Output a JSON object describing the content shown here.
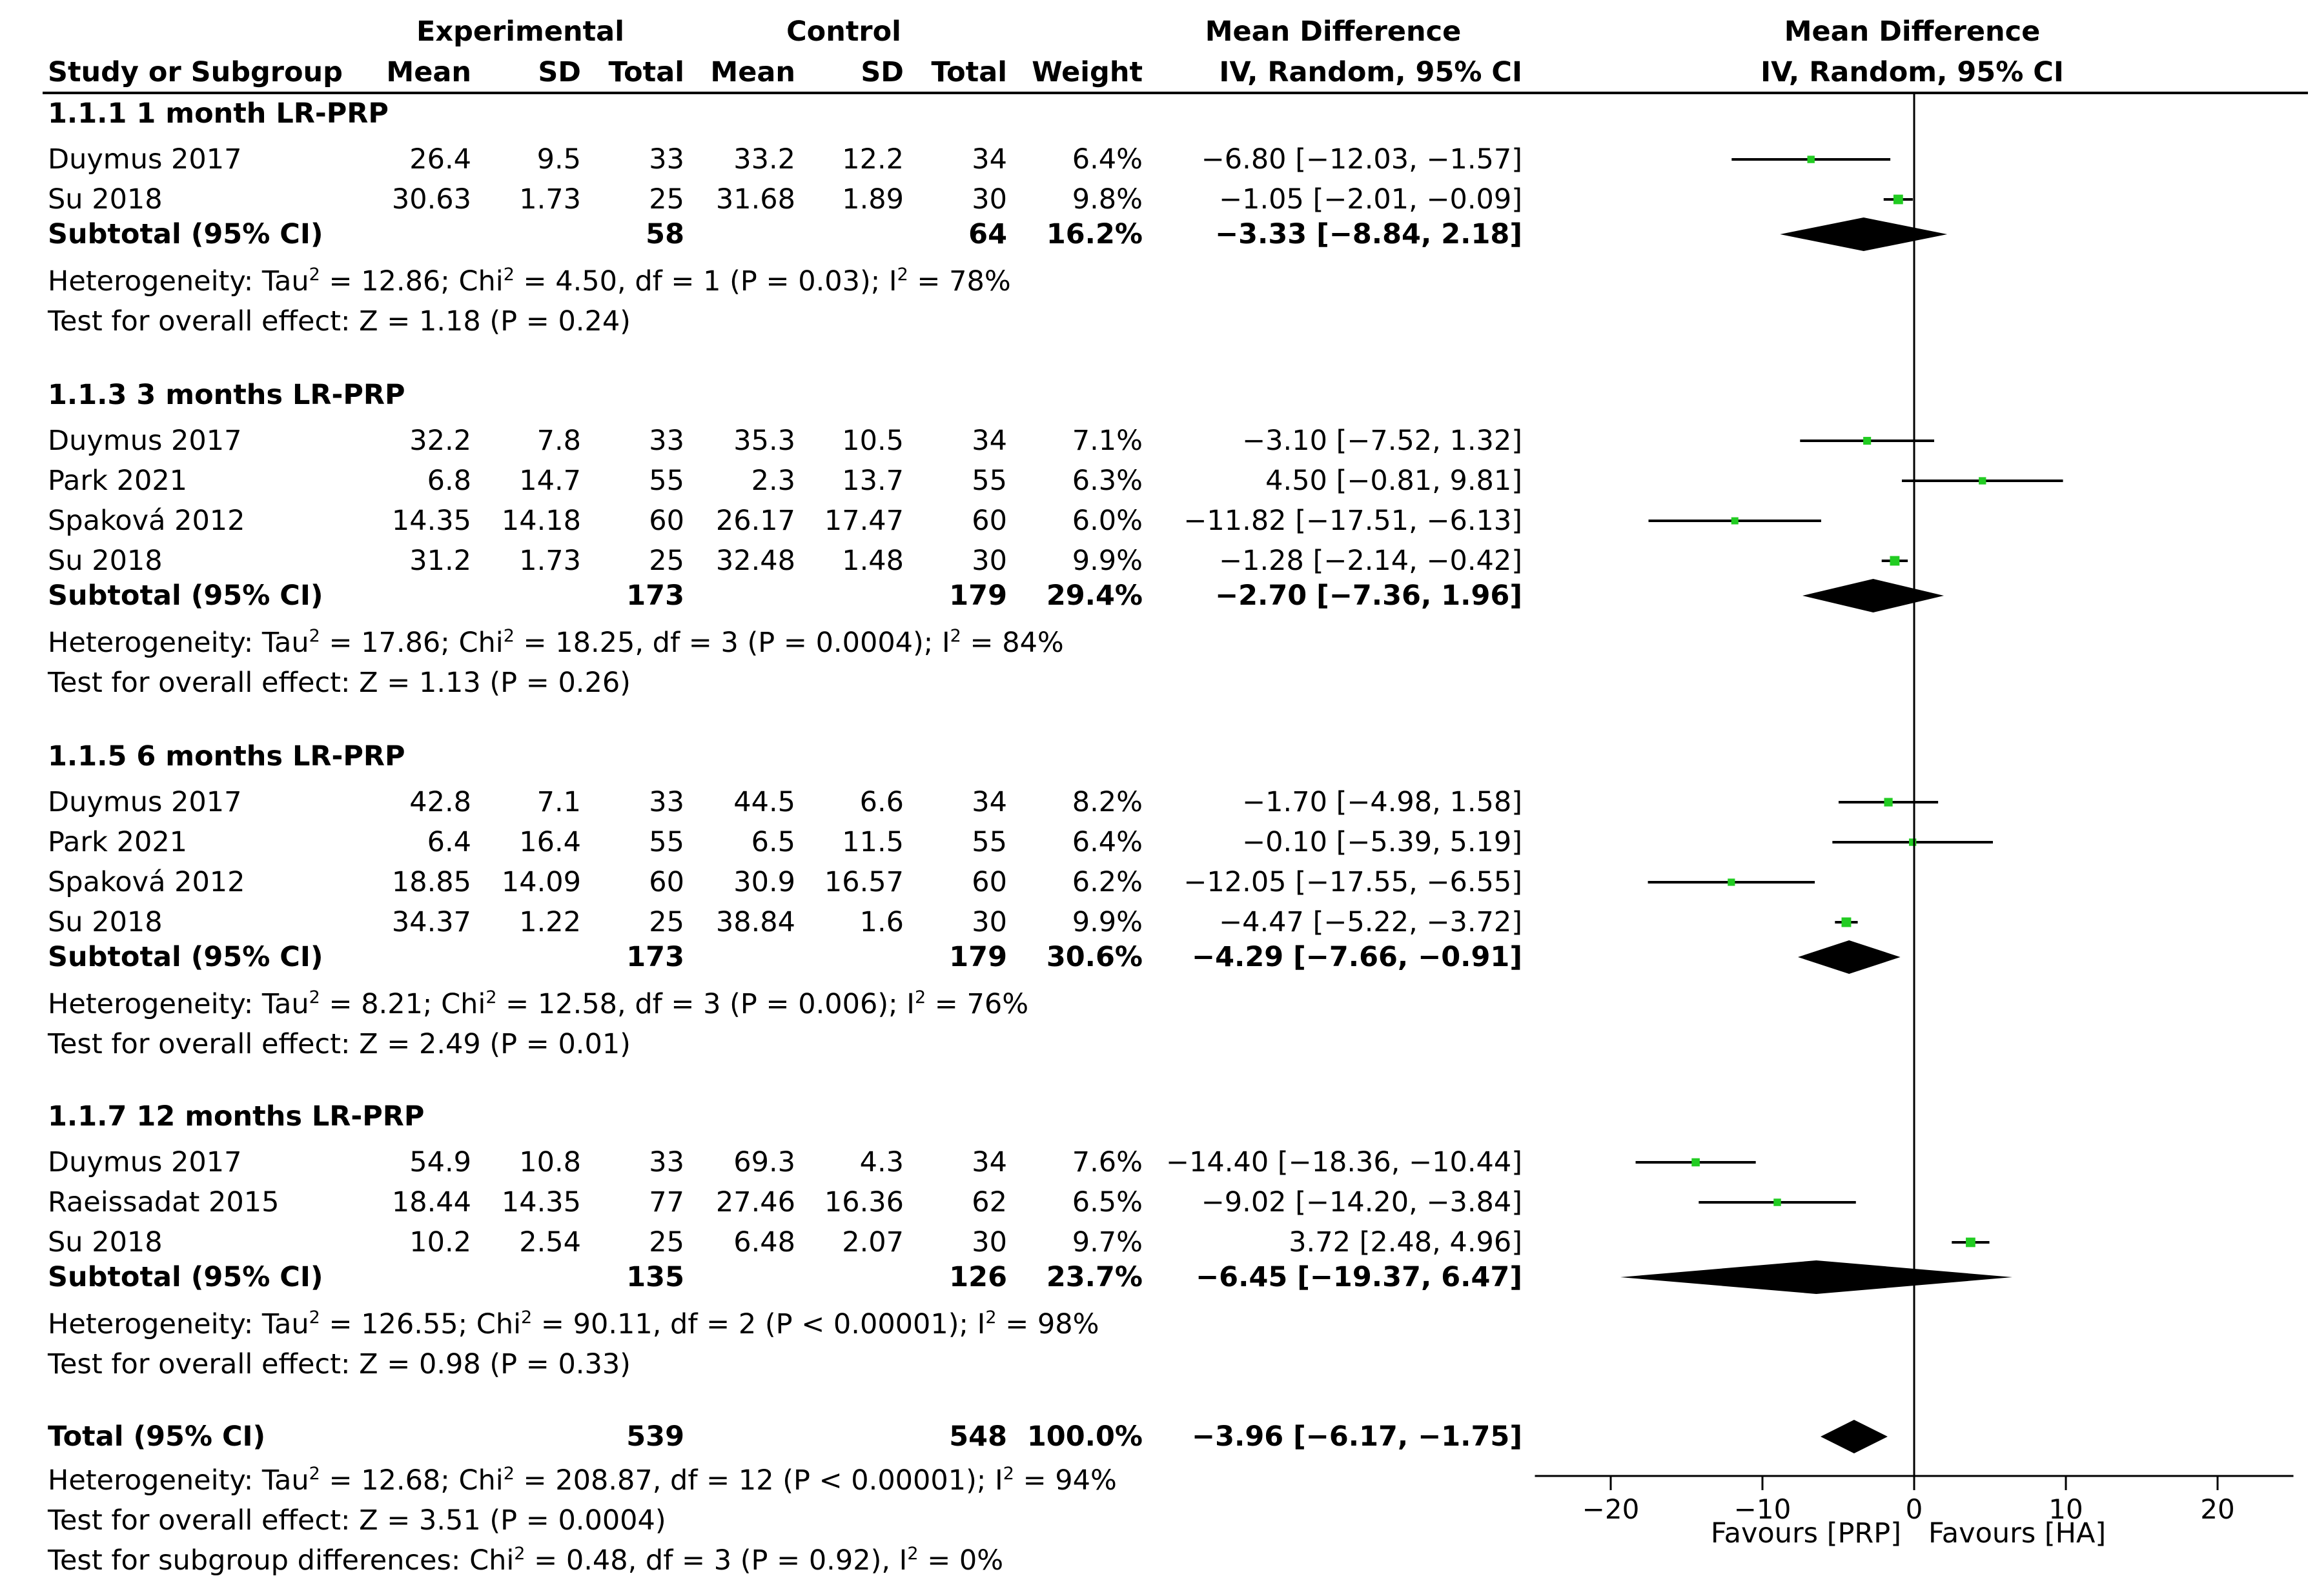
{
  "header": {
    "experimental": "Experimental",
    "control": "Control",
    "md_title": "Mean Difference",
    "study_col": "Study or Subgroup",
    "mean": "Mean",
    "sd": "SD",
    "total": "Total",
    "weight": "Weight",
    "md_method": "IV, Random, 95% CI",
    "plot_title": "Mean Difference",
    "plot_method": "IV, Random, 95% CI"
  },
  "subgroups": [
    {
      "title": "1.1.1 1 month LR-PRP",
      "studies": [
        {
          "name": "Duymus 2017",
          "e_mean": "26.4",
          "e_sd": "9.5",
          "e_total": "33",
          "c_mean": "33.2",
          "c_sd": "12.2",
          "c_total": "34",
          "weight": "6.4%",
          "ci_text": "-6.80 [-12.03, -1.57]",
          "md": -6.8,
          "lo": -12.03,
          "hi": -1.57
        },
        {
          "name": "Su 2018",
          "e_mean": "30.63",
          "e_sd": "1.73",
          "e_total": "25",
          "c_mean": "31.68",
          "c_sd": "1.89",
          "c_total": "30",
          "weight": "9.8%",
          "ci_text": "-1.05 [-2.01, -0.09]",
          "md": -1.05,
          "lo": -2.01,
          "hi": -0.09
        }
      ],
      "subtotal": {
        "label": "Subtotal (95% CI)",
        "e_total": "58",
        "c_total": "64",
        "weight": "16.2%",
        "ci_text": "-3.33 [-8.84, 2.18]",
        "md": -3.33,
        "lo": -8.84,
        "hi": 2.18
      },
      "heterogeneity": {
        "tau2": "12.86",
        "chi2": "4.50",
        "df": "1",
        "p": "P = 0.03",
        "i2": "78%"
      },
      "overall": "Test for overall effect: Z = 1.18 (P = 0.24)"
    },
    {
      "title": "1.1.3 3 months LR-PRP",
      "studies": [
        {
          "name": "Duymus 2017",
          "e_mean": "32.2",
          "e_sd": "7.8",
          "e_total": "33",
          "c_mean": "35.3",
          "c_sd": "10.5",
          "c_total": "34",
          "weight": "7.1%",
          "ci_text": "-3.10 [-7.52, 1.32]",
          "md": -3.1,
          "lo": -7.52,
          "hi": 1.32
        },
        {
          "name": "Park 2021",
          "e_mean": "6.8",
          "e_sd": "14.7",
          "e_total": "55",
          "c_mean": "2.3",
          "c_sd": "13.7",
          "c_total": "55",
          "weight": "6.3%",
          "ci_text": "4.50 [-0.81, 9.81]",
          "md": 4.5,
          "lo": -0.81,
          "hi": 9.81
        },
        {
          "name": "Spaková 2012",
          "e_mean": "14.35",
          "e_sd": "14.18",
          "e_total": "60",
          "c_mean": "26.17",
          "c_sd": "17.47",
          "c_total": "60",
          "weight": "6.0%",
          "ci_text": "-11.82 [-17.51, -6.13]",
          "md": -11.82,
          "lo": -17.51,
          "hi": -6.13
        },
        {
          "name": "Su 2018",
          "e_mean": "31.2",
          "e_sd": "1.73",
          "e_total": "25",
          "c_mean": "32.48",
          "c_sd": "1.48",
          "c_total": "30",
          "weight": "9.9%",
          "ci_text": "-1.28 [-2.14, -0.42]",
          "md": -1.28,
          "lo": -2.14,
          "hi": -0.42
        }
      ],
      "subtotal": {
        "label": "Subtotal (95% CI)",
        "e_total": "173",
        "c_total": "179",
        "weight": "29.4%",
        "ci_text": "-2.70 [-7.36, 1.96]",
        "md": -2.7,
        "lo": -7.36,
        "hi": 1.96
      },
      "heterogeneity": {
        "tau2": "17.86",
        "chi2": "18.25",
        "df": "3",
        "p": "P = 0.0004",
        "i2": "84%"
      },
      "overall": "Test for overall effect: Z = 1.13 (P = 0.26)"
    },
    {
      "title": "1.1.5 6 months LR-PRP",
      "studies": [
        {
          "name": "Duymus 2017",
          "e_mean": "42.8",
          "e_sd": "7.1",
          "e_total": "33",
          "c_mean": "44.5",
          "c_sd": "6.6",
          "c_total": "34",
          "weight": "8.2%",
          "ci_text": "-1.70 [-4.98, 1.58]",
          "md": -1.7,
          "lo": -4.98,
          "hi": 1.58
        },
        {
          "name": "Park 2021",
          "e_mean": "6.4",
          "e_sd": "16.4",
          "e_total": "55",
          "c_mean": "6.5",
          "c_sd": "11.5",
          "c_total": "55",
          "weight": "6.4%",
          "ci_text": "-0.10 [-5.39, 5.19]",
          "md": -0.1,
          "lo": -5.39,
          "hi": 5.19
        },
        {
          "name": "Spaková 2012",
          "e_mean": "18.85",
          "e_sd": "14.09",
          "e_total": "60",
          "c_mean": "30.9",
          "c_sd": "16.57",
          "c_total": "60",
          "weight": "6.2%",
          "ci_text": "-12.05 [-17.55, -6.55]",
          "md": -12.05,
          "lo": -17.55,
          "hi": -6.55
        },
        {
          "name": "Su 2018",
          "e_mean": "34.37",
          "e_sd": "1.22",
          "e_total": "25",
          "c_mean": "38.84",
          "c_sd": "1.6",
          "c_total": "30",
          "weight": "9.9%",
          "ci_text": "-4.47 [-5.22, -3.72]",
          "md": -4.47,
          "lo": -5.22,
          "hi": -3.72
        }
      ],
      "subtotal": {
        "label": "Subtotal (95% CI)",
        "e_total": "173",
        "c_total": "179",
        "weight": "30.6%",
        "ci_text": "-4.29 [-7.66, -0.91]",
        "md": -4.29,
        "lo": -7.66,
        "hi": -0.91
      },
      "heterogeneity": {
        "tau2": "8.21",
        "chi2": "12.58",
        "df": "3",
        "p": "P = 0.006",
        "i2": "76%"
      },
      "overall": "Test for overall effect: Z = 2.49 (P = 0.01)"
    },
    {
      "title": "1.1.7 12 months LR-PRP",
      "studies": [
        {
          "name": "Duymus 2017",
          "e_mean": "54.9",
          "e_sd": "10.8",
          "e_total": "33",
          "c_mean": "69.3",
          "c_sd": "4.3",
          "c_total": "34",
          "weight": "7.6%",
          "ci_text": "-14.40 [-18.36, -10.44]",
          "md": -14.4,
          "lo": -18.36,
          "hi": -10.44
        },
        {
          "name": "Raeissadat 2015",
          "e_mean": "18.44",
          "e_sd": "14.35",
          "e_total": "77",
          "c_mean": "27.46",
          "c_sd": "16.36",
          "c_total": "62",
          "weight": "6.5%",
          "ci_text": "-9.02 [-14.20, -3.84]",
          "md": -9.02,
          "lo": -14.2,
          "hi": -3.84
        },
        {
          "name": "Su 2018",
          "e_mean": "10.2",
          "e_sd": "2.54",
          "e_total": "25",
          "c_mean": "6.48",
          "c_sd": "2.07",
          "c_total": "30",
          "weight": "9.7%",
          "ci_text": "3.72 [2.48, 4.96]",
          "md": 3.72,
          "lo": 2.48,
          "hi": 4.96
        }
      ],
      "subtotal": {
        "label": "Subtotal (95% CI)",
        "e_total": "135",
        "c_total": "126",
        "weight": "23.7%",
        "ci_text": "-6.45 [-19.37, 6.47]",
        "md": -6.45,
        "lo": -19.37,
        "hi": 6.47
      },
      "heterogeneity": {
        "tau2": "126.55",
        "chi2": "90.11",
        "df": "2",
        "p": "P < 0.00001",
        "i2": "98%"
      },
      "overall": "Test for overall effect: Z = 0.98 (P = 0.33)"
    }
  ],
  "total": {
    "label": "Total (95% CI)",
    "e_total": "539",
    "c_total": "548",
    "weight": "100.0%",
    "ci_text": "-3.96 [-6.17, -1.75]",
    "md": -3.96,
    "lo": -6.17,
    "hi": -1.75,
    "heterogeneity": {
      "tau2": "12.68",
      "chi2": "208.87",
      "df": "12",
      "p": "P < 0.00001",
      "i2": "94%"
    },
    "overall": "Test for overall effect: Z = 3.51 (P = 0.0004)",
    "subgroup_diff": {
      "chi2": "0.48",
      "df": "3",
      "p": "P = 0.92",
      "i2": "0%"
    }
  },
  "chart_data": {
    "type": "forest",
    "title": "Mean Difference",
    "subtitle": "IV, Random, 95% CI",
    "xlim": [
      -25,
      25
    ],
    "xticks": [
      -20,
      -10,
      0,
      10,
      20
    ],
    "tick_labels": [
      "-20",
      "-10",
      "0",
      "10",
      "20"
    ],
    "left_label": "Favours [PRP]",
    "right_label": "Favours [HA]",
    "colors": {
      "marker": "#22cc22",
      "line": "#000000",
      "diamond": "#000000"
    }
  }
}
